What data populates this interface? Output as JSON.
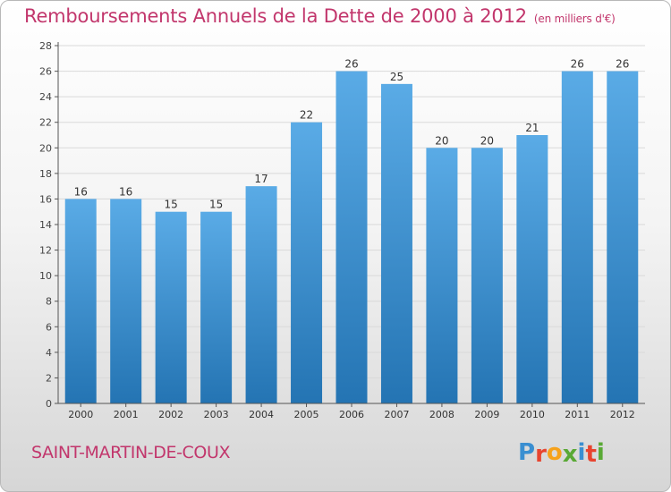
{
  "title": "Remboursements Annuels de la Dette de 2000 à 2012",
  "unit": "(en milliers d'€)",
  "place": "SAINT-MARTIN-DE-COUX",
  "logo": {
    "text": "Proxiti",
    "letter_colors": [
      "#3a8fd1",
      "#e8442f",
      "#f6a21b",
      "#59a935",
      "#3a8fd1",
      "#e8442f",
      "#59a935"
    ]
  },
  "colors": {
    "bar_top": "#5aabe6",
    "bar_bottom": "#2474b3",
    "title": "#c2366c",
    "grid": "#d9d9d9"
  },
  "chart_data": {
    "type": "bar",
    "title": "Remboursements Annuels de la Dette de 2000 à 2012",
    "subtitle": "(en milliers d'€)",
    "xlabel": "",
    "ylabel": "",
    "categories": [
      "2000",
      "2001",
      "2002",
      "2003",
      "2004",
      "2005",
      "2006",
      "2007",
      "2008",
      "2009",
      "2010",
      "2011",
      "2012"
    ],
    "values": [
      16,
      16,
      15,
      15,
      17,
      22,
      26,
      25,
      20,
      20,
      21,
      26,
      26
    ],
    "ylim": [
      0,
      28
    ],
    "yticks": [
      0,
      2,
      4,
      6,
      8,
      10,
      12,
      14,
      16,
      18,
      20,
      22,
      24,
      26,
      28
    ],
    "grid": true,
    "data_labels": true
  }
}
